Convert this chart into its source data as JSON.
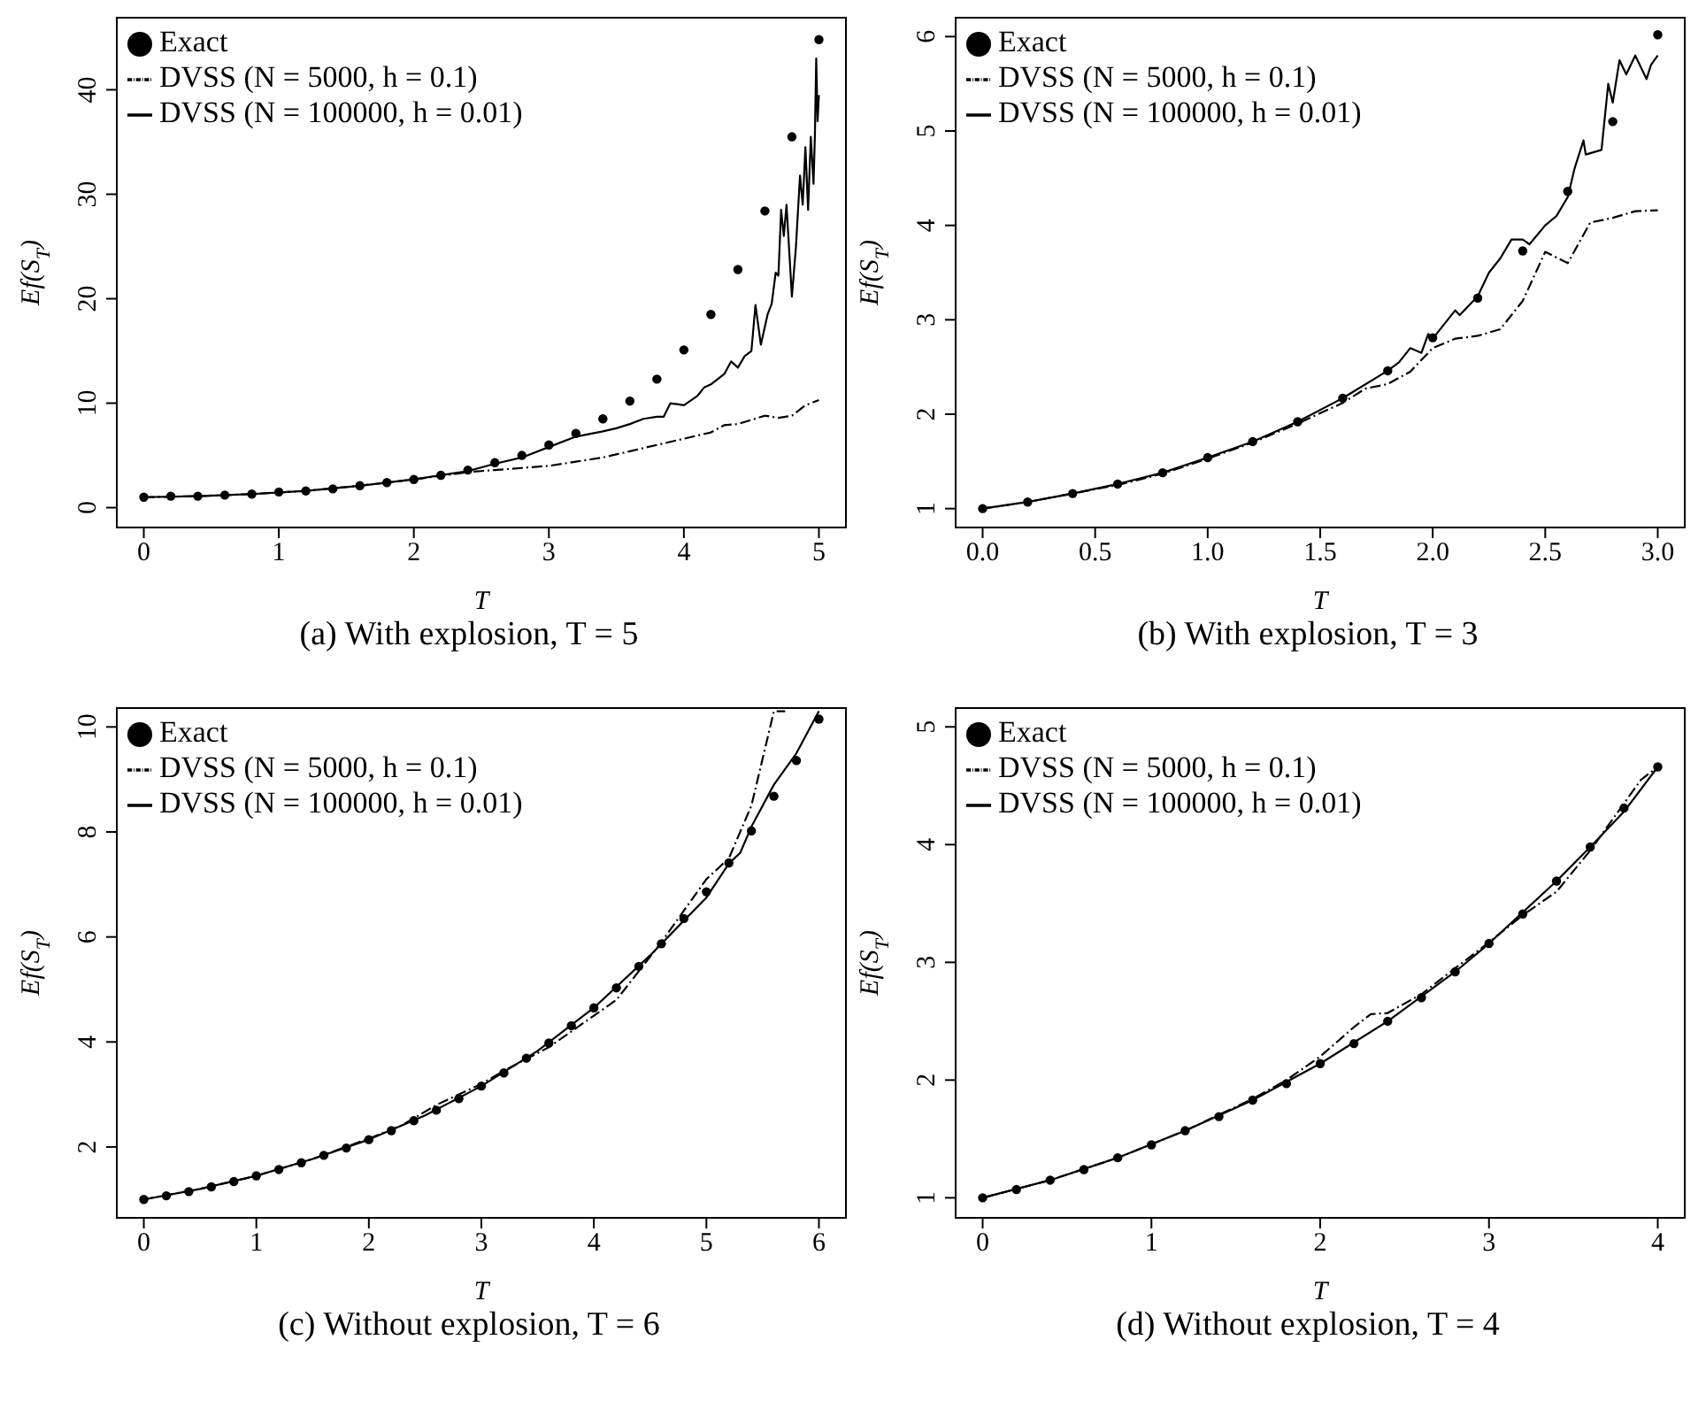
{
  "chart_data": [
    {
      "type": "line",
      "title": "(a) With explosion, T = 5",
      "xlabel": "T",
      "ylabel": "Ef(S$_{T}$)",
      "xlim": [
        -0.2,
        5.2
      ],
      "xticks": [
        0,
        1,
        2,
        3,
        4,
        5
      ],
      "ylim": [
        -1.9,
        46.9
      ],
      "yticks": [
        0,
        10,
        20,
        30,
        40
      ],
      "legend": "top left",
      "series": [
        {
          "name": "Exact",
          "type": "scatter",
          "marker": "circle",
          "color": "#000000",
          "x": [
            0,
            0.2,
            0.4,
            0.6,
            0.8,
            1,
            1.2,
            1.4,
            1.6,
            1.8,
            2,
            2.2,
            2.4,
            2.6,
            2.8,
            3,
            3.2,
            3.4,
            3.6,
            3.8,
            4,
            4.2,
            4.4,
            4.6,
            4.8,
            5
          ],
          "values": [
            1,
            1.1,
            1.1,
            1.2,
            1.3,
            1.5,
            1.6,
            1.8,
            2.1,
            2.4,
            2.7,
            3.1,
            3.6,
            4.3,
            5,
            6,
            7.1,
            8.5,
            10.2,
            12.3,
            15.1,
            18.5,
            22.8,
            28.4,
            35.5,
            44.8
          ]
        },
        {
          "name": "DVSS (N = 5000, h = 0.1)",
          "type": "line",
          "line_style": "dashed",
          "color": "#000000",
          "x": [
            0,
            0.4,
            0.8,
            1.2,
            1.6,
            2,
            2.4,
            2.6,
            2.8,
            3,
            3.2,
            3.4,
            3.6,
            3.8,
            4,
            4.2,
            4.3,
            4.4,
            4.5,
            4.6,
            4.7,
            4.8,
            4.9,
            5
          ],
          "values": [
            1,
            1.1,
            1.3,
            1.6,
            2.1,
            2.7,
            3.4,
            3.6,
            3.8,
            4,
            4.4,
            4.8,
            5.4,
            6,
            6.6,
            7.2,
            7.9,
            8,
            8.4,
            8.8,
            8.6,
            8.8,
            9.8,
            10.3
          ]
        },
        {
          "name": "DVSS (N = 100000, h = 0.01)",
          "type": "line",
          "line_style": "solid",
          "color": "#000000",
          "x": [
            0,
            0.4,
            0.8,
            1.2,
            1.6,
            2,
            2.4,
            2.6,
            2.8,
            3,
            3.2,
            3.4,
            3.5,
            3.6,
            3.7,
            3.8,
            3.85,
            3.9,
            4,
            4.1,
            4.15,
            4.2,
            4.3,
            4.35,
            4.4,
            4.45,
            4.5,
            4.53,
            4.57,
            4.62,
            4.65,
            4.68,
            4.7,
            4.72,
            4.74,
            4.76,
            4.8,
            4.83,
            4.86,
            4.88,
            4.9,
            4.92,
            4.94,
            4.96,
            4.97,
            4.98,
            4.99,
            5
          ],
          "values": [
            1,
            1.1,
            1.3,
            1.6,
            2.1,
            2.7,
            3.5,
            4.2,
            4.8,
            5.8,
            6.8,
            7.3,
            7.6,
            8,
            8.5,
            8.7,
            8.7,
            10,
            9.8,
            10.7,
            11.5,
            11.8,
            12.8,
            14,
            13.4,
            14.5,
            15,
            19.4,
            15.6,
            18.5,
            19.5,
            22.5,
            22.2,
            28.5,
            26,
            29,
            20.2,
            25,
            31.8,
            29,
            34.5,
            28.5,
            35.5,
            31,
            35.5,
            43,
            37,
            39.5
          ]
        }
      ]
    },
    {
      "type": "line",
      "title": "(b) With explosion, T = 3",
      "xlabel": "T",
      "ylabel": "Ef(S$_{T}$)",
      "xlim": [
        -0.12,
        3.12
      ],
      "xticks": [
        {
          "value": 0,
          "label": "0.0"
        },
        0.5,
        {
          "value": 1,
          "label": "1.0"
        },
        1.5,
        {
          "value": 2,
          "label": "2.0"
        },
        2.5,
        {
          "value": 3,
          "label": "3.0"
        }
      ],
      "ylim": [
        0.8,
        6.2
      ],
      "yticks": [
        1,
        2,
        3,
        4,
        5,
        6
      ],
      "legend": "top left",
      "series": [
        {
          "name": "Exact",
          "type": "scatter",
          "marker": "circle",
          "color": "#000000",
          "x": [
            0,
            0.2,
            0.4,
            0.6,
            0.8,
            1,
            1.2,
            1.4,
            1.6,
            1.8,
            2,
            2.2,
            2.4,
            2.6,
            2.8,
            3
          ],
          "values": [
            1,
            1.07,
            1.16,
            1.26,
            1.38,
            1.54,
            1.71,
            1.92,
            2.17,
            2.46,
            2.81,
            3.23,
            3.73,
            4.36,
            5.1,
            6.02
          ]
        },
        {
          "name": "DVSS (N = 5000, h = 0.1)",
          "type": "line",
          "line_style": "dashed",
          "color": "#000000",
          "x": [
            0,
            0.2,
            0.4,
            0.6,
            0.8,
            1,
            1.2,
            1.4,
            1.6,
            1.7,
            1.8,
            1.9,
            2,
            2.1,
            2.2,
            2.3,
            2.4,
            2.5,
            2.6,
            2.7,
            2.8,
            2.9,
            3
          ],
          "values": [
            1,
            1.07,
            1.16,
            1.25,
            1.37,
            1.53,
            1.7,
            1.9,
            2.12,
            2.27,
            2.32,
            2.45,
            2.7,
            2.8,
            2.83,
            2.9,
            3.2,
            3.72,
            3.6,
            4.03,
            4.08,
            4.15,
            4.16
          ]
        },
        {
          "name": "DVSS (N = 100000, h = 0.01)",
          "type": "line",
          "line_style": "solid",
          "color": "#000000",
          "x": [
            0,
            0.2,
            0.4,
            0.6,
            0.8,
            1,
            1.2,
            1.4,
            1.6,
            1.8,
            1.85,
            1.9,
            1.95,
            1.98,
            2,
            2.05,
            2.1,
            2.12,
            2.2,
            2.25,
            2.3,
            2.35,
            2.4,
            2.43,
            2.5,
            2.55,
            2.6,
            2.63,
            2.67,
            2.68,
            2.75,
            2.78,
            2.8,
            2.83,
            2.86,
            2.9,
            2.95,
            2.97,
            3
          ],
          "values": [
            1,
            1.07,
            1.16,
            1.26,
            1.38,
            1.54,
            1.71,
            1.92,
            2.17,
            2.46,
            2.55,
            2.7,
            2.65,
            2.85,
            2.8,
            2.95,
            3.1,
            3.05,
            3.25,
            3.5,
            3.65,
            3.85,
            3.85,
            3.8,
            4,
            4.1,
            4.3,
            4.6,
            4.9,
            4.75,
            4.8,
            5.5,
            5.3,
            5.75,
            5.6,
            5.8,
            5.55,
            5.7,
            5.8
          ]
        }
      ]
    },
    {
      "type": "line",
      "title": "(c) Without explosion, T = 6",
      "xlabel": "T",
      "ylabel": "Ef(S$_{T}$)",
      "xlim": [
        -0.24,
        6.24
      ],
      "xticks": [
        0,
        1,
        2,
        3,
        4,
        5,
        6
      ],
      "ylim": [
        0.65,
        10.36
      ],
      "yticks": [
        2,
        4,
        6,
        8,
        10
      ],
      "legend": "top left",
      "series": [
        {
          "name": "Exact",
          "type": "scatter",
          "marker": "circle",
          "color": "#000000",
          "x": [
            0,
            0.2,
            0.4,
            0.6,
            0.8,
            1,
            1.2,
            1.4,
            1.6,
            1.8,
            2,
            2.2,
            2.4,
            2.6,
            2.8,
            3,
            3.2,
            3.4,
            3.6,
            3.8,
            4,
            4.2,
            4.4,
            4.6,
            4.8,
            5,
            5.2,
            5.4,
            5.6,
            5.8,
            6
          ],
          "values": [
            1,
            1.07,
            1.15,
            1.24,
            1.34,
            1.45,
            1.57,
            1.7,
            1.84,
            1.98,
            2.14,
            2.31,
            2.5,
            2.7,
            2.92,
            3.16,
            3.41,
            3.69,
            3.98,
            4.31,
            4.65,
            5.03,
            5.44,
            5.87,
            6.35,
            6.86,
            7.41,
            8.02,
            8.68,
            9.36,
            10.15
          ]
        },
        {
          "name": "DVSS (N = 5000, h = 0.1)",
          "type": "line",
          "line_style": "dashed",
          "color": "#000000",
          "x": [
            0,
            0.5,
            1,
            1.5,
            2,
            2.3,
            2.6,
            3,
            3.2,
            3.6,
            4,
            4.2,
            4.6,
            4.8,
            5,
            5.2,
            5.3,
            5.4,
            5.5,
            5.6,
            5.7
          ],
          "values": [
            1,
            1.2,
            1.45,
            1.77,
            2.16,
            2.42,
            2.8,
            3.2,
            3.45,
            3.9,
            4.5,
            4.8,
            5.9,
            6.5,
            7.1,
            7.5,
            8,
            8.5,
            9.4,
            10.3,
            10.3
          ]
        },
        {
          "name": "DVSS (N = 100000, h = 0.01)",
          "type": "line",
          "line_style": "solid",
          "color": "#000000",
          "x": [
            0,
            0.5,
            1,
            1.5,
            2,
            2.5,
            3,
            3.5,
            4,
            4.5,
            5,
            5.2,
            5.3,
            5.4,
            5.6,
            5.8,
            6
          ],
          "values": [
            1,
            1.2,
            1.45,
            1.77,
            2.14,
            2.6,
            3.16,
            3.83,
            4.65,
            5.65,
            6.75,
            7.4,
            7.6,
            8.1,
            8.9,
            9.5,
            10.3
          ]
        }
      ]
    },
    {
      "type": "line",
      "title": "(d) Without explosion, T = 4",
      "xlabel": "T",
      "ylabel": "Ef(S$_{T}$)",
      "xlim": [
        -0.16,
        4.16
      ],
      "xticks": [
        0,
        1,
        2,
        3,
        4
      ],
      "ylim": [
        0.83,
        5.16
      ],
      "yticks": [
        1,
        2,
        3,
        4,
        5
      ],
      "legend": "top left",
      "series": [
        {
          "name": "Exact",
          "type": "scatter",
          "marker": "circle",
          "color": "#000000",
          "x": [
            0,
            0.2,
            0.4,
            0.6,
            0.8,
            1,
            1.2,
            1.4,
            1.6,
            1.8,
            2,
            2.2,
            2.4,
            2.6,
            2.8,
            3,
            3.2,
            3.4,
            3.6,
            3.8,
            4
          ],
          "values": [
            1,
            1.07,
            1.15,
            1.24,
            1.34,
            1.45,
            1.57,
            1.69,
            1.83,
            1.97,
            2.14,
            2.31,
            2.5,
            2.7,
            2.92,
            3.16,
            3.41,
            3.69,
            3.98,
            4.31,
            4.66
          ]
        },
        {
          "name": "DVSS (N = 5000, h = 0.1)",
          "type": "line",
          "line_style": "dashed",
          "color": "#000000",
          "x": [
            0,
            0.4,
            0.8,
            1.2,
            1.6,
            1.8,
            2,
            2.2,
            2.3,
            2.4,
            2.6,
            2.8,
            3,
            3.2,
            3.4,
            3.6,
            3.8,
            3.9,
            4
          ],
          "values": [
            1,
            1.15,
            1.34,
            1.57,
            1.84,
            2,
            2.2,
            2.45,
            2.56,
            2.57,
            2.73,
            2.95,
            3.17,
            3.4,
            3.6,
            3.95,
            4.35,
            4.55,
            4.66
          ]
        },
        {
          "name": "DVSS (N = 100000, h = 0.01)",
          "type": "line",
          "line_style": "solid",
          "color": "#000000",
          "x": [
            0,
            0.4,
            0.8,
            1.2,
            1.6,
            2,
            2.4,
            2.8,
            3,
            3.4,
            3.6,
            3.8,
            4
          ],
          "values": [
            1,
            1.15,
            1.34,
            1.57,
            1.83,
            2.14,
            2.5,
            2.92,
            3.16,
            3.69,
            3.98,
            4.28,
            4.66
          ]
        }
      ]
    }
  ]
}
